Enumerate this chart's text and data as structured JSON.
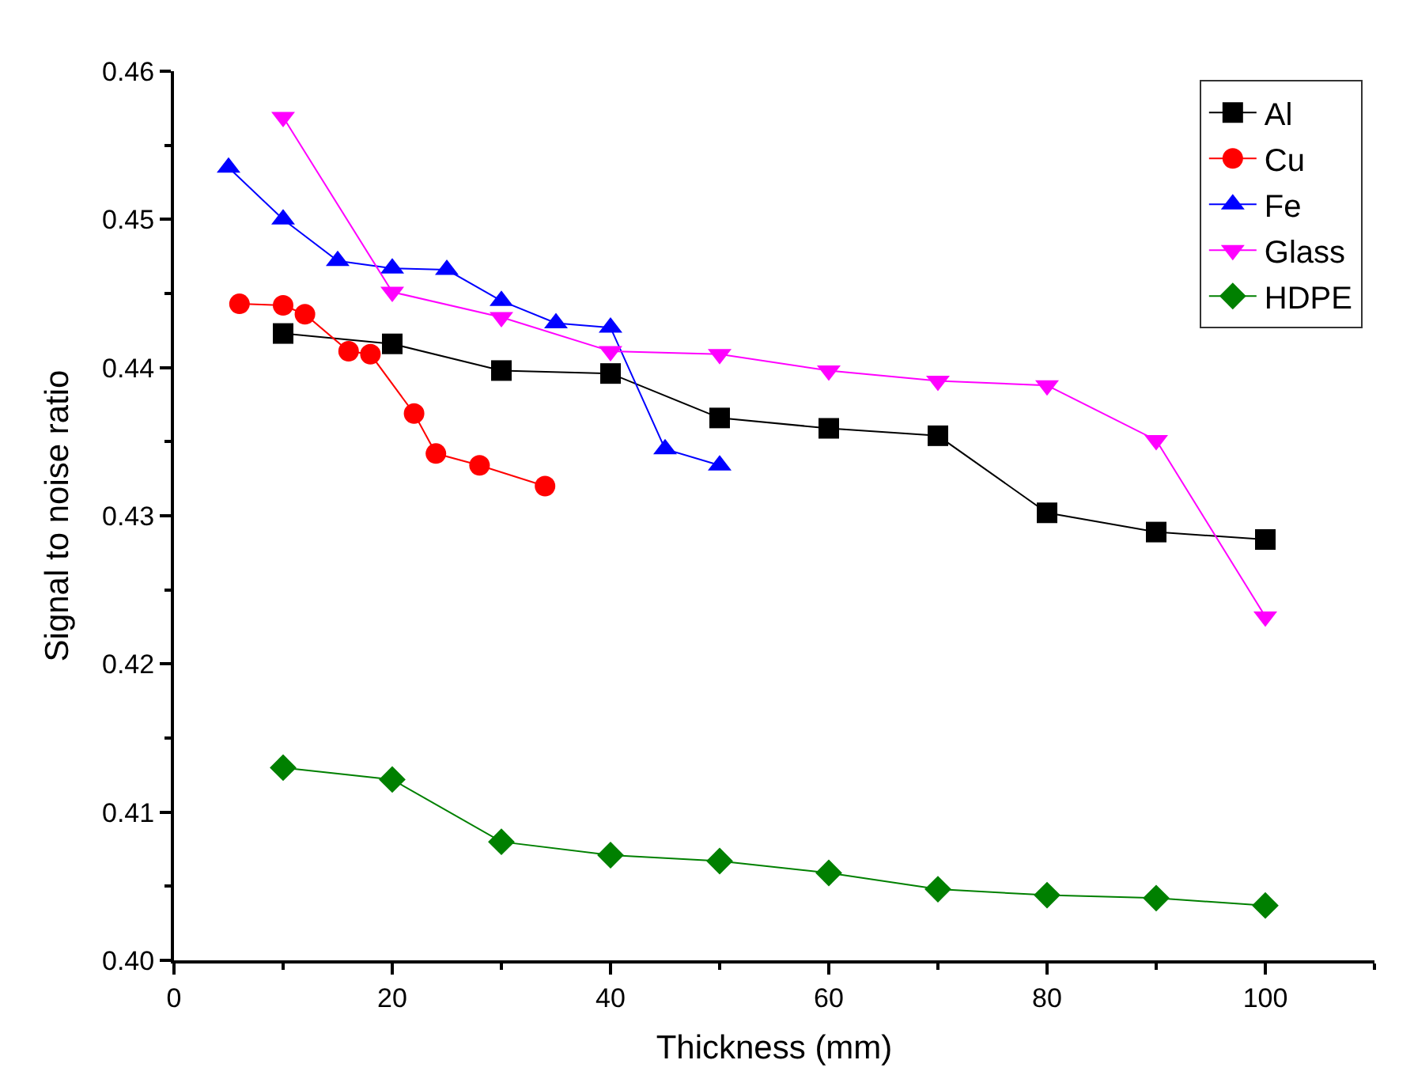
{
  "chart_data": {
    "type": "line",
    "xlabel": "Thickness (mm)",
    "ylabel": "Signal to noise ratio",
    "xlim": [
      0,
      110
    ],
    "xticks": [
      0,
      20,
      40,
      60,
      80,
      100
    ],
    "ylim": [
      0.4,
      0.46
    ],
    "yticks": [
      {
        "value": 0.4,
        "label": "0.40"
      },
      {
        "value": 0.41,
        "label": "0.41"
      },
      {
        "value": 0.42,
        "label": "0.42"
      },
      {
        "value": 0.43,
        "label": "0.43"
      },
      {
        "value": 0.44,
        "label": "0.44"
      },
      {
        "value": 0.45,
        "label": "0.45"
      },
      {
        "value": 0.46,
        "label": "0.46"
      }
    ],
    "legend": "top right",
    "line_style": "solid",
    "series": [
      {
        "name": "Al",
        "color": "#000000",
        "marker": "square",
        "x": [
          10,
          20,
          30,
          40,
          50,
          60,
          70,
          80,
          90,
          100
        ],
        "values": [
          0.4423,
          0.4416,
          0.4398,
          0.4396,
          0.4366,
          0.4359,
          0.4354,
          0.4302,
          0.4289,
          0.4284
        ]
      },
      {
        "name": "Cu",
        "color": "#ff0000",
        "marker": "circle",
        "x": [
          6,
          10,
          12,
          16,
          18,
          22,
          24,
          28,
          34
        ],
        "values": [
          0.4443,
          0.4442,
          0.4436,
          0.4411,
          0.4409,
          0.4369,
          0.4342,
          0.4334,
          0.432
        ]
      },
      {
        "name": "Fe",
        "color": "#0000ff",
        "marker": "triangle",
        "x": [
          5,
          10,
          15,
          20,
          25,
          30,
          35,
          40,
          45,
          50
        ],
        "values": [
          0.4535,
          0.45,
          0.4472,
          0.4467,
          0.4466,
          0.4445,
          0.443,
          0.4427,
          0.4345,
          0.4334
        ]
      },
      {
        "name": "Glass",
        "color": "#ff00ff",
        "marker": "triangle-down",
        "x": [
          10,
          20,
          30,
          40,
          50,
          60,
          70,
          80,
          90,
          100
        ],
        "values": [
          0.4569,
          0.4451,
          0.4434,
          0.4411,
          0.4409,
          0.4398,
          0.4391,
          0.4388,
          0.4351,
          0.4232
        ]
      },
      {
        "name": "HDPE",
        "color": "#008000",
        "marker": "diamond",
        "x": [
          10,
          20,
          30,
          40,
          50,
          60,
          70,
          80,
          90,
          100
        ],
        "values": [
          0.413,
          0.4122,
          0.408,
          0.4071,
          0.4067,
          0.4059,
          0.4048,
          0.4044,
          0.4042,
          0.4037
        ]
      }
    ]
  }
}
